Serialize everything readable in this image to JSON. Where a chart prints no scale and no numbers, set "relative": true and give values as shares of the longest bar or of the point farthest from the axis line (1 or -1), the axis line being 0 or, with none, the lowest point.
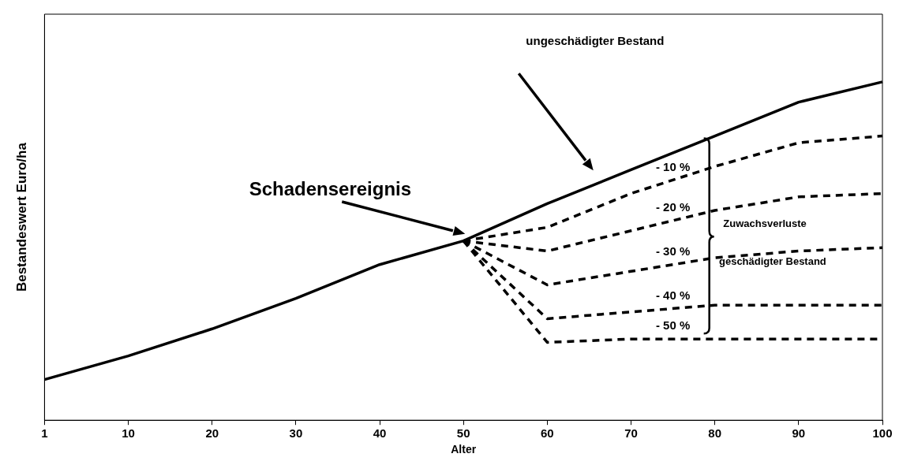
{
  "chart_data": {
    "type": "line",
    "xlabel": "Alter",
    "ylabel": "Bestandeswert Euro/ha",
    "relative": true,
    "legend": false,
    "marker": "none",
    "grid": false,
    "categories": [
      "1",
      "10",
      "20",
      "30",
      "40",
      "50",
      "60",
      "70",
      "80",
      "90",
      "100"
    ],
    "series": [
      {
        "color": "#000000",
        "line_style": "solid",
        "values": [
          0.12,
          0.19,
          0.27,
          0.36,
          0.46,
          0.53,
          0.64,
          0.74,
          0.84,
          0.94,
          1
        ]
      },
      {
        "name": "- 10 %",
        "color": "#000000",
        "line_style": "dashed",
        "values": [
          null,
          null,
          null,
          null,
          null,
          0.53,
          0.57,
          0.67,
          0.75,
          0.82,
          0.84
        ]
      },
      {
        "name": "- 20 %",
        "color": "#000000",
        "line_style": "dashed",
        "values": [
          null,
          null,
          null,
          null,
          null,
          0.53,
          0.5,
          0.56,
          0.62,
          0.66,
          0.67
        ]
      },
      {
        "name": "- 30 %",
        "color": "#000000",
        "line_style": "dashed",
        "values": [
          null,
          null,
          null,
          null,
          null,
          0.53,
          0.4,
          0.44,
          0.48,
          0.5,
          0.51
        ]
      },
      {
        "name": "- 40 %",
        "color": "#000000",
        "line_style": "dashed",
        "values": [
          null,
          null,
          null,
          null,
          null,
          0.53,
          0.3,
          0.32,
          0.34,
          0.34,
          0.34
        ]
      },
      {
        "name": "- 50 %",
        "color": "#000000",
        "line_style": "dashed",
        "values": [
          null,
          null,
          null,
          null,
          null,
          0.53,
          0.23,
          0.24,
          0.24,
          0.24,
          0.24
        ]
      }
    ],
    "annotations": [
      "ungeschädigter Bestand",
      "Schadensereignis",
      "Zuwachsverluste",
      "geschädigter Bestand"
    ]
  }
}
